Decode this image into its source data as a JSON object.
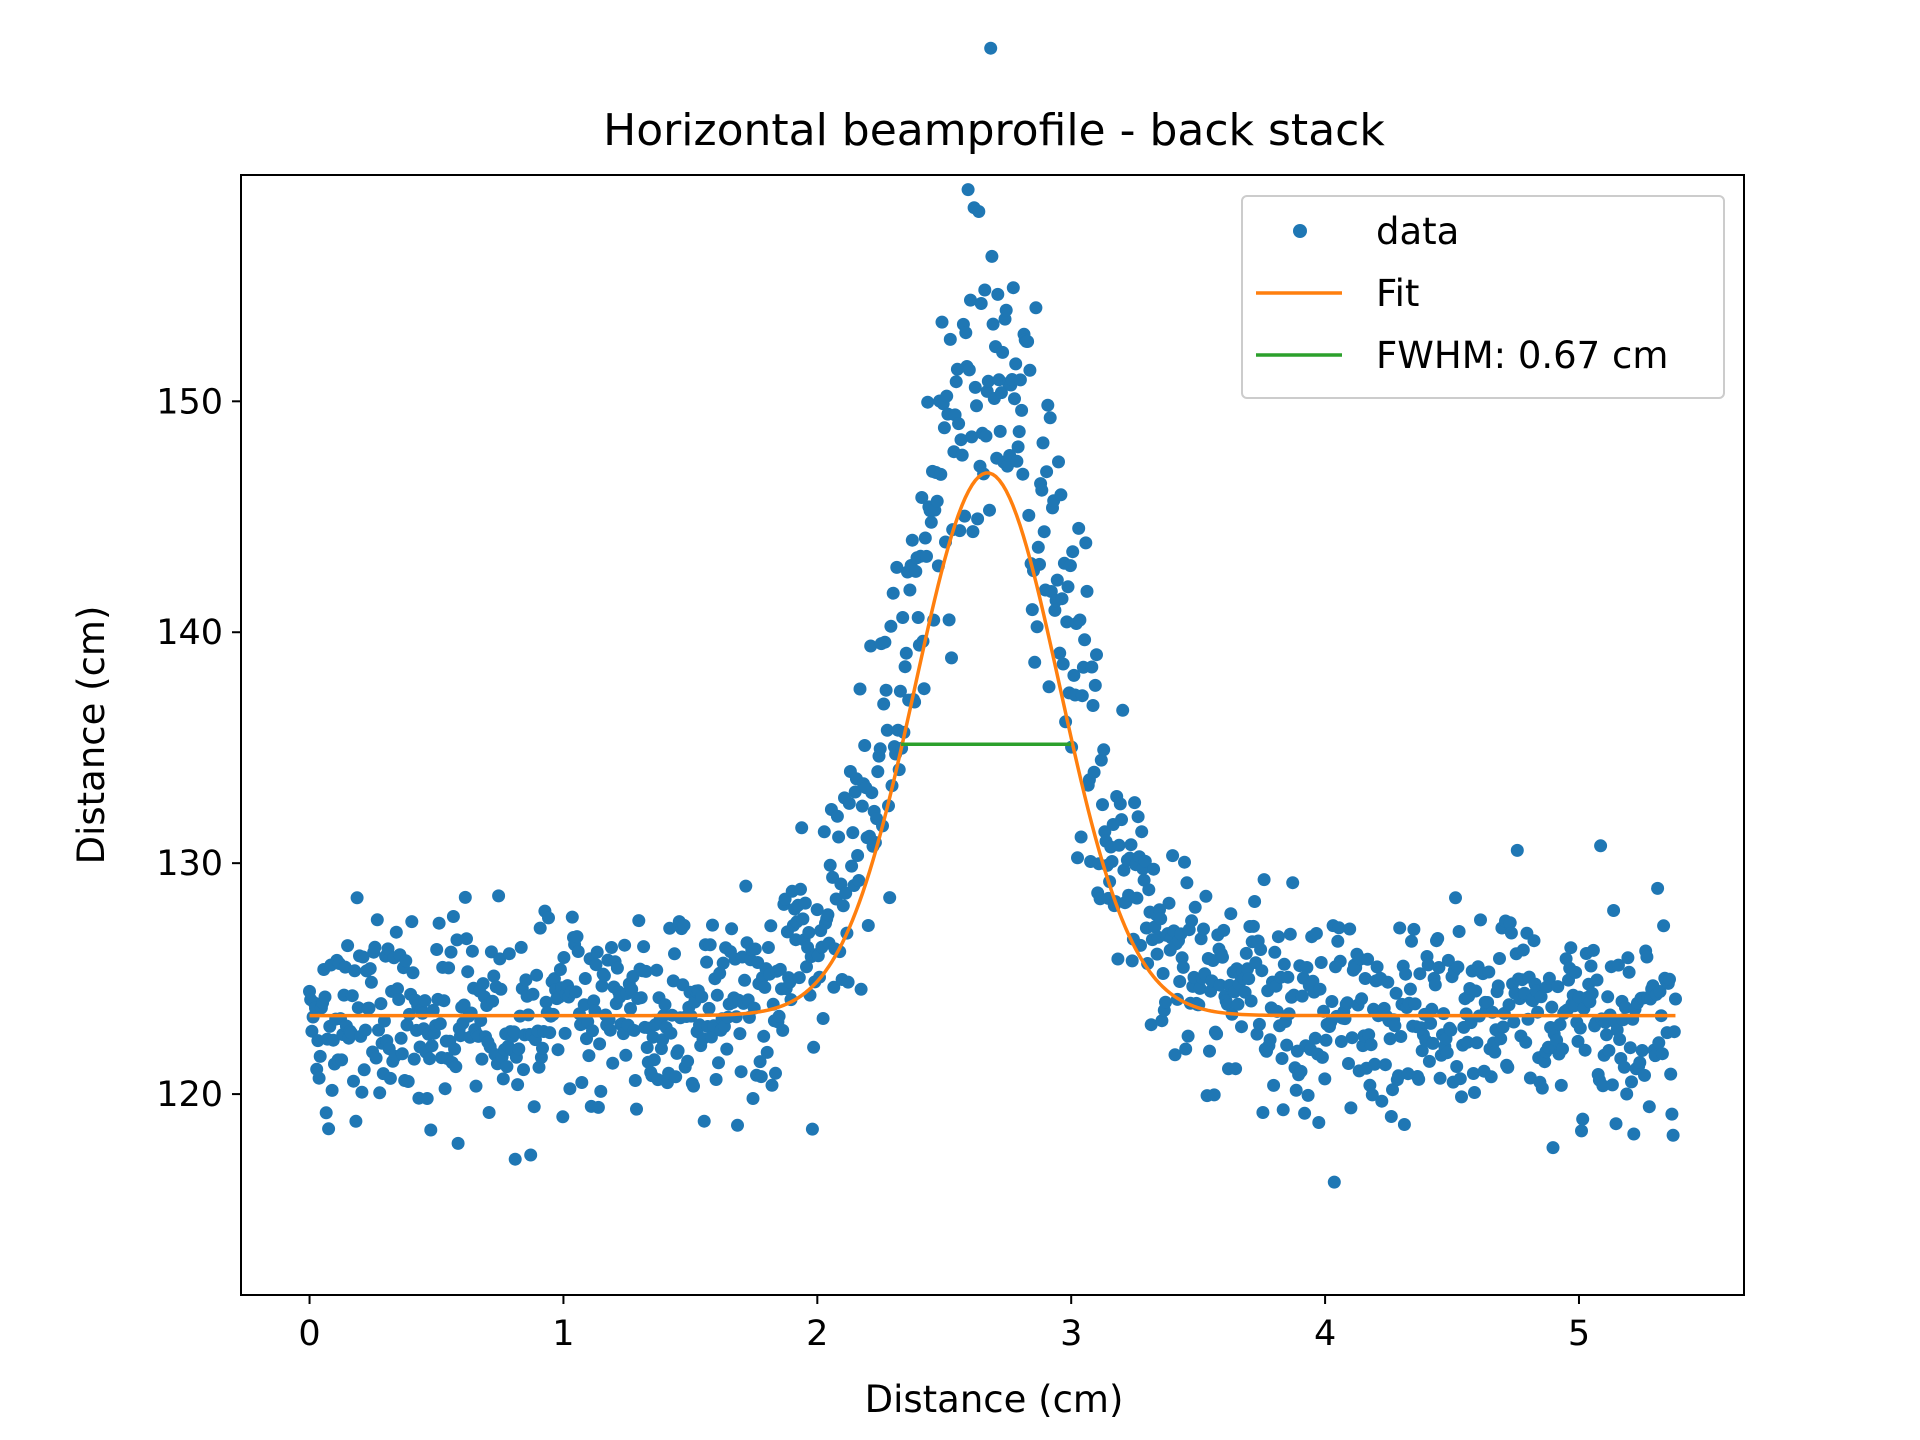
{
  "chart_data": {
    "type": "scatter",
    "title": "Horizontal beamprofile - back stack",
    "xlabel": "Distance (cm)",
    "ylabel": "Distance (cm)",
    "xlim": [
      -0.27,
      5.65
    ],
    "ylim": [
      111.3,
      159.8
    ],
    "xticks": [
      0,
      1,
      2,
      3,
      4,
      5
    ],
    "yticks": [
      120,
      130,
      140,
      150
    ],
    "grid": false,
    "legend_position": "upper right",
    "series": [
      {
        "name": "data",
        "kind": "points",
        "color": "#1f77b4",
        "count": 1150,
        "x_range": [
          0,
          5.38
        ],
        "baseline": 123.4,
        "noise_sd": 2.2,
        "peak_center": 2.67,
        "peak_amplitude": 23.5,
        "peak_sigma": 0.285
      },
      {
        "name": "Fit",
        "kind": "line",
        "color": "#ff7f0e",
        "function": "gaussian",
        "offset": 123.4,
        "amplitude": 23.5,
        "center": 2.67,
        "sigma": 0.285,
        "x_range": [
          0,
          5.38
        ]
      },
      {
        "name": "FWHM: 0.67 cm",
        "kind": "line",
        "color": "#2ca02c",
        "x": [
          2.33,
          3.0
        ],
        "y": [
          135.15,
          135.15
        ]
      }
    ]
  }
}
